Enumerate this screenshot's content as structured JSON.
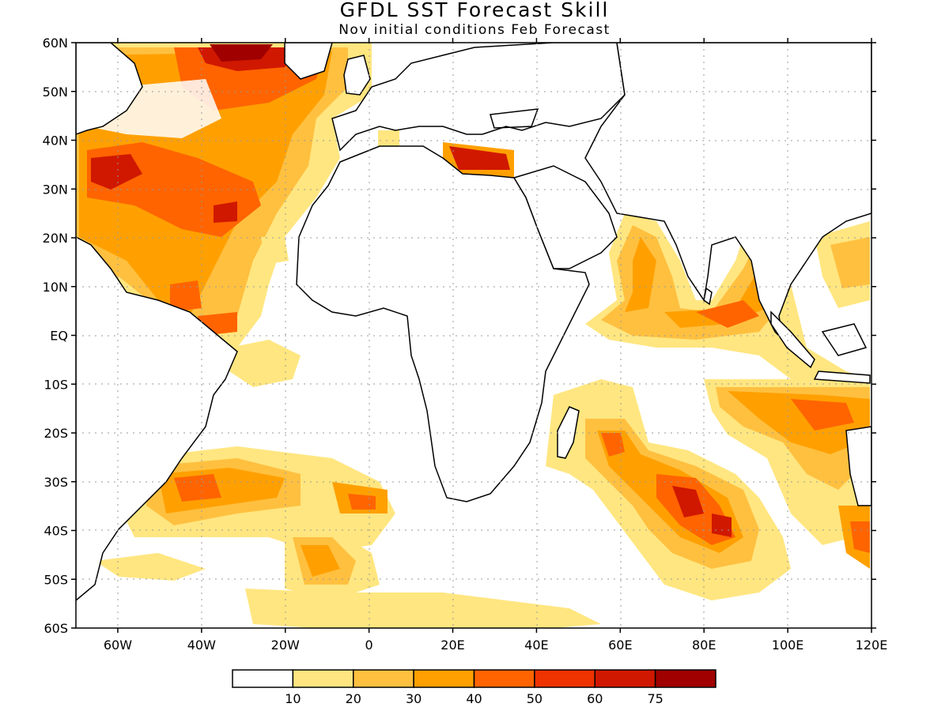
{
  "title": "GFDL SST Forecast Skill",
  "subtitle": "Nov initial conditions  Feb Forecast",
  "lat_labels": [
    "60N",
    "50N",
    "40N",
    "30N",
    "20N",
    "10N",
    "EQ",
    "10S",
    "20S",
    "30S",
    "40S",
    "50S",
    "60S"
  ],
  "lon_labels": [
    "60W",
    "40W",
    "20W",
    "0",
    "20E",
    "40E",
    "60E",
    "80E",
    "100E",
    "120E"
  ],
  "colorbar": {
    "labels": [
      "10",
      "20",
      "30",
      "40",
      "50",
      "60",
      "75"
    ],
    "colors": [
      "#ffffff",
      "#ffe680",
      "#ffc040",
      "#ffa000",
      "#ff6400",
      "#ee3200",
      "#d01800",
      "#a00000"
    ]
  },
  "map_extent": {
    "lon_min": -70,
    "lon_max": 120,
    "lat_min": -60,
    "lat_max": 60
  }
}
